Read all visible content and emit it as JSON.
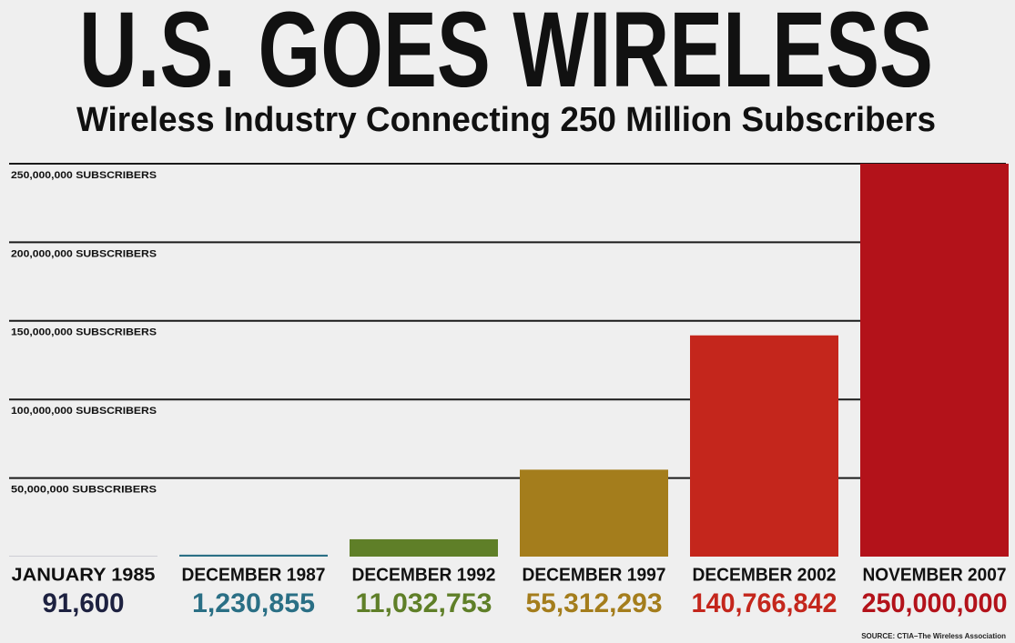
{
  "chart_data": {
    "type": "bar",
    "title": "U.S. GOES WIRELESS",
    "subtitle": "Wireless Industry Connecting 250 Million Subscribers",
    "source": "SOURCE: CTIA–The Wireless Association",
    "categories": [
      "JANUARY 1985",
      "DECEMBER 1987",
      "DECEMBER 1992",
      "DECEMBER 1997",
      "DECEMBER 2002",
      "NOVEMBER 2007"
    ],
    "values": [
      91600,
      1230855,
      11032753,
      55312293,
      140766842,
      250000000
    ],
    "value_labels": [
      "91,600",
      "1,230,855",
      "11,032,753",
      "55,312,293",
      "140,766,842",
      "250,000,000"
    ],
    "colors": [
      "#1d2140",
      "#2a6f85",
      "#5f7f28",
      "#a47d1c",
      "#c4261c",
      "#b3121a"
    ],
    "ylim": [
      0,
      250000000
    ],
    "yticks": [
      {
        "value": 50000000,
        "label": "50,000,000 SUBSCRIBERS"
      },
      {
        "value": 100000000,
        "label": "100,000,000 SUBSCRIBERS"
      },
      {
        "value": 150000000,
        "label": "150,000,000 SUBSCRIBERS"
      },
      {
        "value": 200000000,
        "label": "200,000,000 SUBSCRIBERS"
      },
      {
        "value": 250000000,
        "label": "250,000,000 SUBSCRIBERS"
      }
    ],
    "grid": true
  }
}
